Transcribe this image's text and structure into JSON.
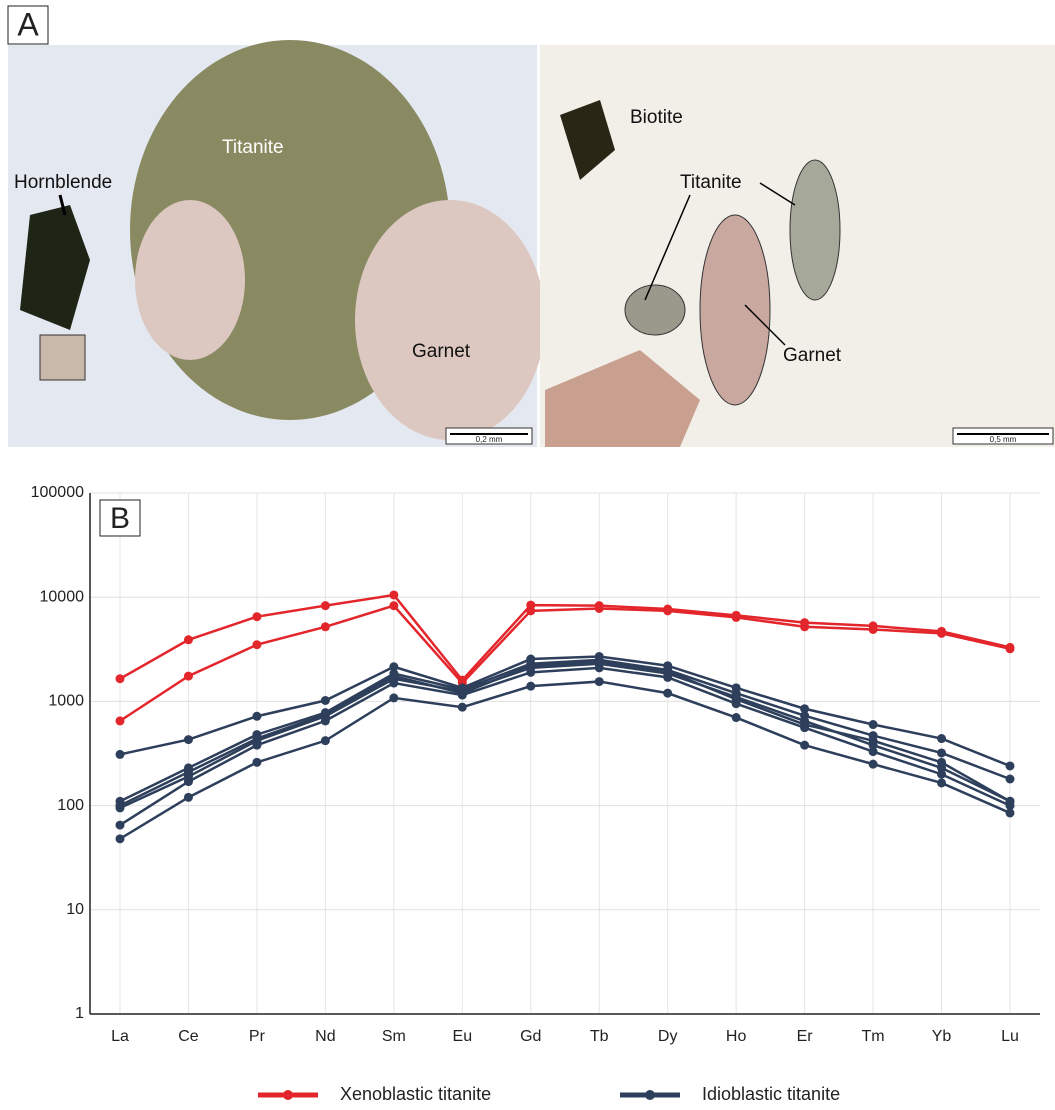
{
  "panel_a": {
    "label": "A",
    "left_photo": {
      "labels": [
        "Hornblende",
        "Titanite",
        "Garnet"
      ],
      "scale": "0,2 mm"
    },
    "right_photo": {
      "labels": [
        "Biotite",
        "Titanite",
        "Garnet"
      ],
      "scale": "0,5 mm"
    }
  },
  "chart_data": {
    "type": "line",
    "panel_label": "B",
    "categories": [
      "La",
      "Ce",
      "Pr",
      "Nd",
      "Sm",
      "Eu",
      "Gd",
      "Tb",
      "Dy",
      "Ho",
      "Er",
      "Tm",
      "Yb",
      "Lu"
    ],
    "log_scale": true,
    "ylim": [
      1,
      100000
    ],
    "yticks": [
      1,
      10,
      100,
      1000,
      10000,
      100000
    ],
    "grid": true,
    "legend": "bottom",
    "series": [
      {
        "name": "Xenoblastic titanite",
        "color": "#e3262b",
        "lines": [
          [
            1650,
            3900,
            6500,
            8300,
            10500,
            1600,
            8400,
            8300,
            7700,
            6700,
            5700,
            5300,
            4700,
            3300
          ],
          [
            650,
            1750,
            3500,
            5200,
            8300,
            1500,
            7400,
            7800,
            7400,
            6400,
            5200,
            4900,
            4500,
            3200
          ]
        ]
      },
      {
        "name": "Idioblastic titanite",
        "color": "#2e3f5c",
        "lines": [
          [
            310,
            430,
            720,
            1020,
            2150,
            1350,
            2550,
            2700,
            2200,
            1350,
            850,
            600,
            440,
            240
          ],
          [
            110,
            230,
            480,
            780,
            1850,
            1300,
            2300,
            2500,
            2000,
            1200,
            730,
            470,
            320,
            180
          ],
          [
            100,
            210,
            440,
            750,
            1750,
            1200,
            2200,
            2400,
            1950,
            1050,
            600,
            420,
            260,
            110
          ],
          [
            95,
            190,
            420,
            720,
            1650,
            1250,
            2100,
            2300,
            1850,
            1100,
            650,
            380,
            230,
            110
          ],
          [
            65,
            170,
            380,
            650,
            1500,
            1150,
            1900,
            2100,
            1700,
            950,
            560,
            330,
            200,
            100
          ],
          [
            48,
            120,
            260,
            420,
            1080,
            880,
            1400,
            1550,
            1200,
            700,
            380,
            250,
            165,
            85
          ]
        ]
      }
    ]
  }
}
